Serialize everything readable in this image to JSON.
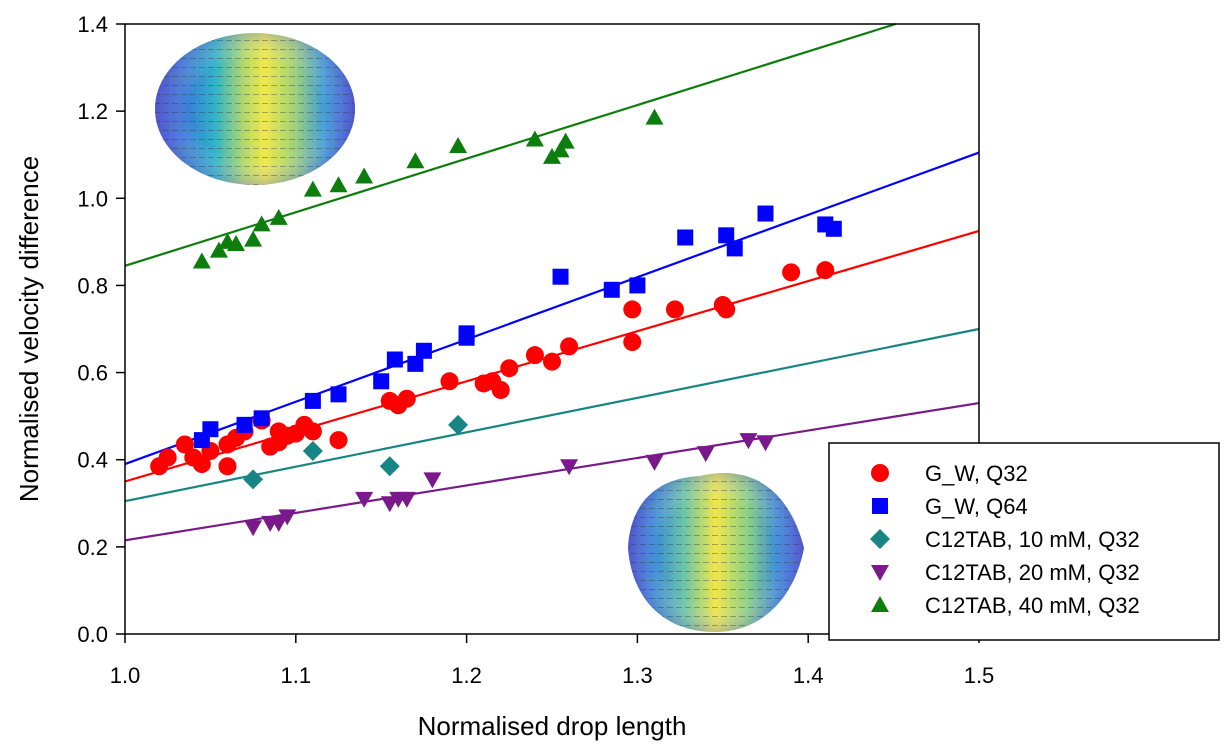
{
  "chart_data": {
    "type": "scatter",
    "xlabel": "Normalised drop length",
    "ylabel": "Normalised velocity difference",
    "xlim": [
      1.0,
      1.5
    ],
    "ylim": [
      0.0,
      1.4
    ],
    "x_ticks": [
      "1.0",
      "1.1",
      "1.2",
      "1.3",
      "1.4",
      "1.5"
    ],
    "y_ticks": [
      "0.0",
      "0.2",
      "0.4",
      "0.6",
      "0.8",
      "1.0",
      "1.2",
      "1.4"
    ],
    "legend_position": "bottom-right",
    "series": [
      {
        "name": "G_W, Q32",
        "marker": "circle",
        "color": "#ff0000",
        "fit": [
          [
            1.0,
            0.35
          ],
          [
            1.5,
            0.925
          ]
        ],
        "points": [
          [
            1.02,
            0.385
          ],
          [
            1.025,
            0.405
          ],
          [
            1.035,
            0.435
          ],
          [
            1.04,
            0.405
          ],
          [
            1.045,
            0.39
          ],
          [
            1.05,
            0.42
          ],
          [
            1.06,
            0.385
          ],
          [
            1.06,
            0.435
          ],
          [
            1.065,
            0.45
          ],
          [
            1.07,
            0.465
          ],
          [
            1.08,
            0.49
          ],
          [
            1.085,
            0.43
          ],
          [
            1.09,
            0.44
          ],
          [
            1.09,
            0.465
          ],
          [
            1.095,
            0.455
          ],
          [
            1.1,
            0.46
          ],
          [
            1.105,
            0.48
          ],
          [
            1.11,
            0.465
          ],
          [
            1.125,
            0.445
          ],
          [
            1.155,
            0.535
          ],
          [
            1.16,
            0.525
          ],
          [
            1.165,
            0.54
          ],
          [
            1.19,
            0.58
          ],
          [
            1.21,
            0.575
          ],
          [
            1.215,
            0.58
          ],
          [
            1.22,
            0.56
          ],
          [
            1.225,
            0.61
          ],
          [
            1.24,
            0.64
          ],
          [
            1.25,
            0.625
          ],
          [
            1.26,
            0.66
          ],
          [
            1.297,
            0.67
          ],
          [
            1.297,
            0.745
          ],
          [
            1.322,
            0.745
          ],
          [
            1.35,
            0.755
          ],
          [
            1.352,
            0.745
          ],
          [
            1.39,
            0.83
          ],
          [
            1.41,
            0.835
          ]
        ]
      },
      {
        "name": "G_W, Q64",
        "marker": "square",
        "color": "#0000ff",
        "fit": [
          [
            1.0,
            0.39
          ],
          [
            1.5,
            1.105
          ]
        ],
        "points": [
          [
            1.045,
            0.445
          ],
          [
            1.05,
            0.47
          ],
          [
            1.07,
            0.48
          ],
          [
            1.08,
            0.495
          ],
          [
            1.11,
            0.535
          ],
          [
            1.125,
            0.55
          ],
          [
            1.15,
            0.58
          ],
          [
            1.158,
            0.63
          ],
          [
            1.17,
            0.62
          ],
          [
            1.175,
            0.65
          ],
          [
            1.2,
            0.68
          ],
          [
            1.2,
            0.69
          ],
          [
            1.255,
            0.82
          ],
          [
            1.285,
            0.79
          ],
          [
            1.3,
            0.8
          ],
          [
            1.328,
            0.91
          ],
          [
            1.352,
            0.915
          ],
          [
            1.357,
            0.885
          ],
          [
            1.375,
            0.965
          ],
          [
            1.41,
            0.94
          ],
          [
            1.415,
            0.93
          ]
        ]
      },
      {
        "name": "C12TAB, 10 mM, Q32",
        "marker": "diamond",
        "color": "#178583",
        "fit": [
          [
            1.0,
            0.305
          ],
          [
            1.5,
            0.7
          ]
        ],
        "points": [
          [
            1.075,
            0.355
          ],
          [
            1.11,
            0.42
          ],
          [
            1.155,
            0.385
          ],
          [
            1.195,
            0.48
          ]
        ]
      },
      {
        "name": "C12TAB, 20 mM, Q32",
        "marker": "triangle-down",
        "color": "#7a1a8a",
        "fit": [
          [
            1.0,
            0.215
          ],
          [
            1.5,
            0.53
          ]
        ],
        "points": [
          [
            1.075,
            0.245
          ],
          [
            1.085,
            0.255
          ],
          [
            1.09,
            0.255
          ],
          [
            1.095,
            0.27
          ],
          [
            1.14,
            0.31
          ],
          [
            1.155,
            0.3
          ],
          [
            1.16,
            0.31
          ],
          [
            1.165,
            0.31
          ],
          [
            1.18,
            0.355
          ],
          [
            1.26,
            0.385
          ],
          [
            1.31,
            0.395
          ],
          [
            1.34,
            0.415
          ],
          [
            1.365,
            0.445
          ],
          [
            1.375,
            0.44
          ]
        ]
      },
      {
        "name": "C12TAB, 40 mM, Q32",
        "marker": "triangle-up",
        "color": "#0d7d0d",
        "fit": [
          [
            1.0,
            0.845
          ],
          [
            1.5,
            1.46
          ]
        ],
        "points": [
          [
            1.045,
            0.855
          ],
          [
            1.055,
            0.88
          ],
          [
            1.06,
            0.9
          ],
          [
            1.065,
            0.895
          ],
          [
            1.075,
            0.905
          ],
          [
            1.08,
            0.94
          ],
          [
            1.09,
            0.955
          ],
          [
            1.11,
            1.02
          ],
          [
            1.125,
            1.03
          ],
          [
            1.14,
            1.05
          ],
          [
            1.17,
            1.085
          ],
          [
            1.195,
            1.12
          ],
          [
            1.24,
            1.135
          ],
          [
            1.25,
            1.095
          ],
          [
            1.255,
            1.11
          ],
          [
            1.258,
            1.13
          ],
          [
            1.31,
            1.185
          ]
        ]
      }
    ]
  }
}
